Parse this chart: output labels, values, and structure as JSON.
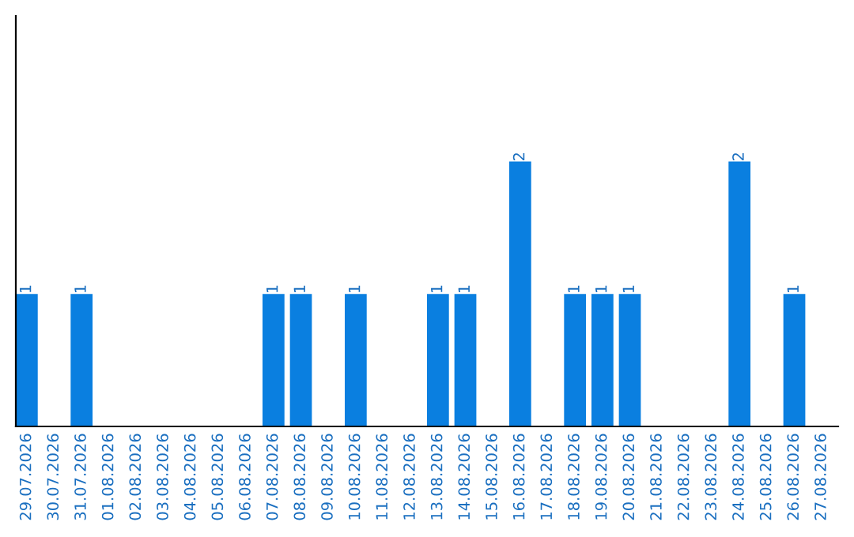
{
  "chart_data": {
    "type": "bar",
    "categories": [
      "29.07.2026",
      "30.07.2026",
      "31.07.2026",
      "01.08.2026",
      "02.08.2026",
      "03.08.2026",
      "04.08.2026",
      "05.08.2026",
      "06.08.2026",
      "07.08.2026",
      "08.08.2026",
      "09.08.2026",
      "10.08.2026",
      "11.08.2026",
      "12.08.2026",
      "13.08.2026",
      "14.08.2026",
      "15.08.2026",
      "16.08.2026",
      "17.08.2026",
      "18.08.2026",
      "19.08.2026",
      "20.08.2026",
      "21.08.2026",
      "22.08.2026",
      "23.08.2026",
      "24.08.2026",
      "25.08.2026",
      "26.08.2026",
      "27.08.2026"
    ],
    "values": [
      1,
      0,
      1,
      0,
      0,
      0,
      0,
      0,
      0,
      1,
      1,
      0,
      1,
      0,
      0,
      1,
      1,
      0,
      2,
      0,
      1,
      1,
      1,
      0,
      0,
      0,
      2,
      0,
      1,
      0
    ],
    "value_labels": [
      "1",
      null,
      "1",
      null,
      null,
      null,
      null,
      null,
      null,
      "1",
      "1",
      null,
      "1",
      null,
      null,
      "1",
      "1",
      null,
      "2",
      null,
      "1",
      "1",
      "1",
      null,
      null,
      null,
      "2",
      null,
      "1",
      null
    ],
    "color": "#0a7fe0",
    "ylim": [
      0,
      3.1
    ],
    "tick_labels": "x",
    "grid": false,
    "legend": false
  }
}
